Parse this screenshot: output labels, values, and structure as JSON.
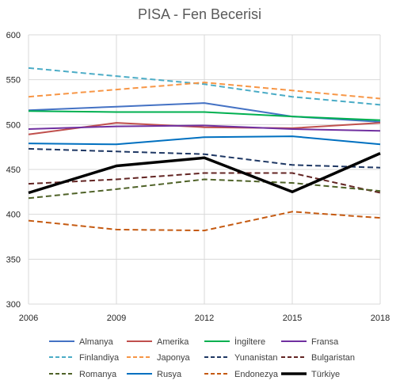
{
  "chart_data": {
    "type": "line",
    "title": "PISA - Fen Becerisi",
    "x": [
      "2006",
      "2009",
      "2012",
      "2015",
      "2018"
    ],
    "ylim": [
      300,
      600
    ],
    "yticks": [
      300,
      350,
      400,
      450,
      500,
      550,
      600
    ],
    "grid": "vertical and horizontal",
    "legend": "bottom",
    "series": [
      {
        "name": "Almanya",
        "values": [
          516,
          520,
          524,
          509,
          503
        ],
        "color": "#4472c4",
        "dash": "solid",
        "width": 2
      },
      {
        "name": "Amerika",
        "values": [
          489,
          502,
          497,
          496,
          502
        ],
        "color": "#c0504d",
        "dash": "solid",
        "width": 2
      },
      {
        "name": "İngiltere",
        "values": [
          515,
          514,
          514,
          509,
          505
        ],
        "color": "#00b050",
        "dash": "solid",
        "width": 2
      },
      {
        "name": "Fransa",
        "values": [
          495,
          498,
          499,
          495,
          493
        ],
        "color": "#7030a0",
        "dash": "solid",
        "width": 2
      },
      {
        "name": "Finlandiya",
        "values": [
          563,
          554,
          545,
          531,
          522
        ],
        "color": "#4bacc6",
        "dash": "dashed",
        "width": 2
      },
      {
        "name": "Japonya",
        "values": [
          531,
          539,
          547,
          538,
          529
        ],
        "color": "#f79646",
        "dash": "dashed",
        "width": 2
      },
      {
        "name": "Yunanistan",
        "values": [
          473,
          470,
          467,
          455,
          452
        ],
        "color": "#1f3864",
        "dash": "dashed",
        "width": 2
      },
      {
        "name": "Bulgaristan",
        "values": [
          434,
          439,
          446,
          446,
          424
        ],
        "color": "#632523",
        "dash": "dashed",
        "width": 2
      },
      {
        "name": "Romanya",
        "values": [
          418,
          428,
          439,
          435,
          426
        ],
        "color": "#4f6228",
        "dash": "dashed",
        "width": 2
      },
      {
        "name": "Rusya",
        "values": [
          479,
          478,
          486,
          487,
          478
        ],
        "color": "#0070c0",
        "dash": "solid",
        "width": 2
      },
      {
        "name": "Endonezya",
        "values": [
          393,
          383,
          382,
          403,
          396
        ],
        "color": "#c55a11",
        "dash": "dashed",
        "width": 2
      },
      {
        "name": "Türkiye",
        "values": [
          424,
          454,
          463,
          425,
          468
        ],
        "color": "#000000",
        "dash": "solid",
        "width": 3.5
      }
    ]
  }
}
